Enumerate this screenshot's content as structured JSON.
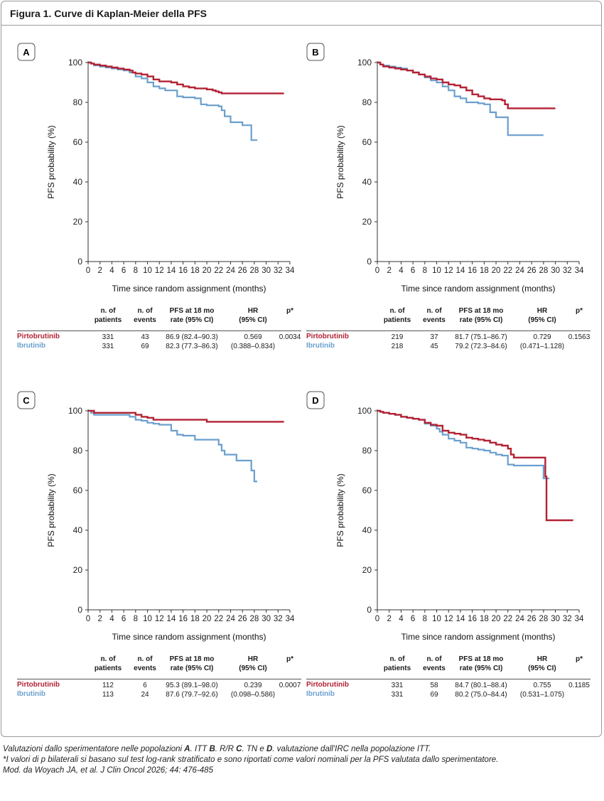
{
  "figure_title": "Figura 1. Curve di Kaplan-Meier della PFS",
  "colors": {
    "pirtobrutinib": "#b22234",
    "ibrutinib": "#6a9fcd",
    "axis": "#333333"
  },
  "table_headers": [
    "n. of\npatients",
    "n. of\nevents",
    "PFS at 18 mo\nrate (95% CI)",
    "HR\n(95% CI)",
    "p*"
  ],
  "caption": {
    "line1_parts": [
      "Valutazioni dallo sperimentatore nelle popolazioni ",
      "A",
      ". ITT ",
      "B",
      ". R/R ",
      "C",
      ". TN e ",
      "D",
      ". valutazione dall'IRC nella popolazione ITT."
    ],
    "line2": "*I valori di p bilaterali si basano sul test log-rank stratificato e sono riportati come valori nominali per la PFS valutata dallo sperimentatore.",
    "line3": "Mod. da Woyach JA, et al. J Clin Oncol 2026; 44: 476-485"
  },
  "panels": [
    {
      "label": "A",
      "table": [
        {
          "name": "Pirtobrutinib",
          "patients": "331",
          "events": "43",
          "pfs18": "86.9 (82.4–90.3)",
          "hr": "0.569",
          "p": "0.0034"
        },
        {
          "name": "Ibrutinib",
          "patients": "331",
          "events": "69",
          "pfs18": "82.3 (77.3–86.3)",
          "hr": "(0.388–0.834)",
          "p": ""
        }
      ]
    },
    {
      "label": "B",
      "table": [
        {
          "name": "Pirtobrutinib",
          "patients": "219",
          "events": "37",
          "pfs18": "81.7 (75.1–86.7)",
          "hr": "0.729",
          "p": "0.1563"
        },
        {
          "name": "Ibrutinib",
          "patients": "218",
          "events": "45",
          "pfs18": "79.2 (72.3–84.6)",
          "hr": "(0.471–1.128)",
          "p": ""
        }
      ]
    },
    {
      "label": "C",
      "table": [
        {
          "name": "Pirtobrutinib",
          "patients": "112",
          "events": "6",
          "pfs18": "95.3 (89.1–98.0)",
          "hr": "0.239",
          "p": "0.0007"
        },
        {
          "name": "Ibrutinib",
          "patients": "113",
          "events": "24",
          "pfs18": "87.6 (79.7–92.6)",
          "hr": "(0.098–0.586)",
          "p": ""
        }
      ]
    },
    {
      "label": "D",
      "table": [
        {
          "name": "Pirtobrutinib",
          "patients": "331",
          "events": "58",
          "pfs18": "84.7 (80.1–88.4)",
          "hr": "0.755",
          "p": "0.1185"
        },
        {
          "name": "Ibrutinib",
          "patients": "331",
          "events": "69",
          "pfs18": "80.2 (75.0–84.4)",
          "hr": "(0.531–1.075)",
          "p": ""
        }
      ]
    }
  ],
  "chart_data": [
    {
      "type": "line",
      "panel": "A",
      "xlabel": "Time since random assignment (months)",
      "ylabel": "PFS probability (%)",
      "xlim": [
        0,
        34
      ],
      "ylim": [
        0,
        100
      ],
      "xticks": [
        0,
        2,
        4,
        6,
        8,
        10,
        12,
        14,
        16,
        18,
        20,
        22,
        24,
        26,
        28,
        30,
        32,
        34
      ],
      "yticks": [
        0,
        20,
        40,
        60,
        80,
        100
      ],
      "series": [
        {
          "name": "Pirtobrutinib",
          "x": [
            0,
            0.5,
            1,
            2,
            3,
            4,
            5,
            6,
            7,
            7.5,
            8,
            9,
            10,
            11,
            12,
            13,
            14,
            15,
            16,
            17,
            18,
            19,
            20,
            21,
            21.5,
            22,
            22.5,
            23,
            24,
            26,
            28,
            30,
            32,
            33
          ],
          "y": [
            100,
            99.5,
            99,
            98.5,
            98,
            97.5,
            97,
            96.5,
            96,
            95,
            94.5,
            94,
            93,
            91.5,
            90.5,
            90.5,
            90,
            89,
            88,
            87.5,
            87,
            87,
            86.5,
            86,
            85.5,
            85,
            84.5,
            84.5,
            84.5,
            84.5,
            84.5,
            84.5,
            84.5,
            84.5
          ]
        },
        {
          "name": "Ibrutinib",
          "x": [
            0,
            0.5,
            1,
            2,
            3,
            4,
            5,
            6,
            7,
            8,
            9,
            10,
            11,
            12,
            13,
            14,
            15,
            16,
            17,
            18,
            19,
            20,
            21,
            22,
            22.5,
            23,
            24,
            25,
            26,
            27,
            27.5,
            28,
            28.5
          ],
          "y": [
            100,
            99.5,
            98.5,
            98,
            97.5,
            97,
            96.5,
            96,
            95,
            93,
            92,
            90,
            88,
            87,
            86,
            86,
            83,
            82.5,
            82.5,
            82,
            79,
            78.5,
            78.5,
            78,
            76,
            73,
            70,
            70,
            68.5,
            68.5,
            61,
            61,
            61
          ]
        }
      ]
    },
    {
      "type": "line",
      "panel": "B",
      "xlabel": "Time since random assignment (months)",
      "ylabel": "PFS probability (%)",
      "xlim": [
        0,
        34
      ],
      "ylim": [
        0,
        100
      ],
      "xticks": [
        0,
        2,
        4,
        6,
        8,
        10,
        12,
        14,
        16,
        18,
        20,
        22,
        24,
        26,
        28,
        30,
        32,
        34
      ],
      "yticks": [
        0,
        20,
        40,
        60,
        80,
        100
      ],
      "series": [
        {
          "name": "Pirtobrutinib",
          "x": [
            0,
            0.5,
            1,
            2,
            3,
            4,
            5,
            6,
            7,
            8,
            9,
            10,
            11,
            12,
            13,
            14,
            15,
            16,
            17,
            18,
            19,
            20,
            21,
            21.5,
            22,
            23,
            24,
            26,
            28,
            30
          ],
          "y": [
            100,
            99,
            98,
            97.5,
            97,
            96.5,
            96,
            95,
            94,
            93,
            92,
            91.5,
            90,
            89,
            88.5,
            87.5,
            86,
            84,
            83,
            82,
            81.5,
            81.5,
            81,
            79,
            77,
            77,
            77,
            77,
            77,
            77
          ]
        },
        {
          "name": "Ibrutinib",
          "x": [
            0,
            0.5,
            1,
            2,
            3,
            4,
            5,
            6,
            7,
            8,
            9,
            10,
            11,
            12,
            13,
            14,
            15,
            16,
            17,
            18,
            19,
            20,
            21,
            22,
            23,
            24,
            26,
            28
          ],
          "y": [
            100,
            99,
            98.5,
            98,
            97.5,
            97,
            96,
            95,
            94,
            92.5,
            91,
            90,
            88,
            86,
            83,
            82,
            80,
            80,
            79.5,
            79,
            75,
            72.5,
            72.5,
            63.5,
            63.5,
            63.5,
            63.5,
            63.5
          ]
        }
      ]
    },
    {
      "type": "line",
      "panel": "C",
      "xlabel": "Time since random assignment (months)",
      "ylabel": "PFS probability (%)",
      "xlim": [
        0,
        34
      ],
      "ylim": [
        0,
        100
      ],
      "xticks": [
        0,
        2,
        4,
        6,
        8,
        10,
        12,
        14,
        16,
        18,
        20,
        22,
        24,
        26,
        28,
        30,
        32,
        34
      ],
      "yticks": [
        0,
        20,
        40,
        60,
        80,
        100
      ],
      "series": [
        {
          "name": "Pirtobrutinib",
          "x": [
            0,
            1,
            2,
            4,
            6,
            7,
            8,
            9,
            10,
            11,
            12,
            14,
            16,
            18,
            19.5,
            20,
            22,
            24,
            26,
            28,
            30,
            32,
            33
          ],
          "y": [
            100,
            99,
            99,
            99,
            99,
            99,
            98,
            97,
            96.5,
            95.5,
            95.5,
            95.5,
            95.5,
            95.5,
            95.5,
            94.5,
            94.5,
            94.5,
            94.5,
            94.5,
            94.5,
            94.5,
            94.5
          ]
        },
        {
          "name": "Ibrutinib",
          "x": [
            0,
            0.5,
            1,
            2,
            4,
            6,
            7,
            8,
            9,
            10,
            11,
            12,
            13,
            14,
            15,
            16,
            17,
            18,
            20,
            21,
            22,
            22.5,
            23,
            24,
            25,
            26,
            27,
            27.5,
            28,
            28.5
          ],
          "y": [
            100,
            99,
            98,
            98,
            98,
            98,
            97,
            95.5,
            95,
            94,
            93.5,
            93,
            93,
            90,
            88,
            87.5,
            87.5,
            85.5,
            85.5,
            85.5,
            83,
            80,
            78,
            78,
            75,
            75,
            75,
            70,
            64.5,
            64.5
          ]
        }
      ]
    },
    {
      "type": "line",
      "panel": "D",
      "xlabel": "Time since random assignment (months)",
      "ylabel": "PFS probability (%)",
      "xlim": [
        0,
        34
      ],
      "ylim": [
        0,
        100
      ],
      "xticks": [
        0,
        2,
        4,
        6,
        8,
        10,
        12,
        14,
        16,
        18,
        20,
        22,
        24,
        26,
        28,
        30,
        32,
        34
      ],
      "yticks": [
        0,
        20,
        40,
        60,
        80,
        100
      ],
      "series": [
        {
          "name": "Pirtobrutinib",
          "x": [
            0,
            0.5,
            1,
            2,
            3,
            4,
            5,
            6,
            7,
            8,
            9,
            10,
            11,
            12,
            13,
            14,
            15,
            16,
            17,
            18,
            19,
            20,
            21,
            22,
            22.5,
            23,
            24,
            26,
            27,
            28,
            28.3,
            28.5,
            29,
            30,
            31,
            32,
            33
          ],
          "y": [
            100,
            99.5,
            99,
            98.5,
            98,
            97,
            96.5,
            96,
            95.5,
            94,
            93,
            92.5,
            90,
            89,
            88.5,
            88,
            86.5,
            86,
            85.5,
            85,
            84,
            83,
            82.5,
            81,
            78,
            76.5,
            76.5,
            76.5,
            76.5,
            76.5,
            67,
            45,
            45,
            45,
            45,
            45,
            45
          ]
        },
        {
          "name": "Ibrutinib",
          "x": [
            0,
            0.5,
            1,
            2,
            3,
            4,
            5,
            6,
            7,
            8,
            9,
            10,
            10.5,
            11,
            12,
            13,
            14,
            15,
            16,
            17,
            18,
            19,
            20,
            21,
            22,
            23,
            24,
            26,
            27,
            28,
            28.5,
            29
          ],
          "y": [
            100,
            99.5,
            99,
            98.5,
            98,
            97,
            96.5,
            96,
            95.5,
            93.5,
            92.5,
            91,
            89.5,
            88,
            86,
            85,
            84,
            81.5,
            81,
            80.5,
            80,
            79,
            78,
            77.5,
            73,
            72.5,
            72.5,
            72.5,
            72.5,
            66,
            66,
            66
          ]
        }
      ]
    }
  ]
}
